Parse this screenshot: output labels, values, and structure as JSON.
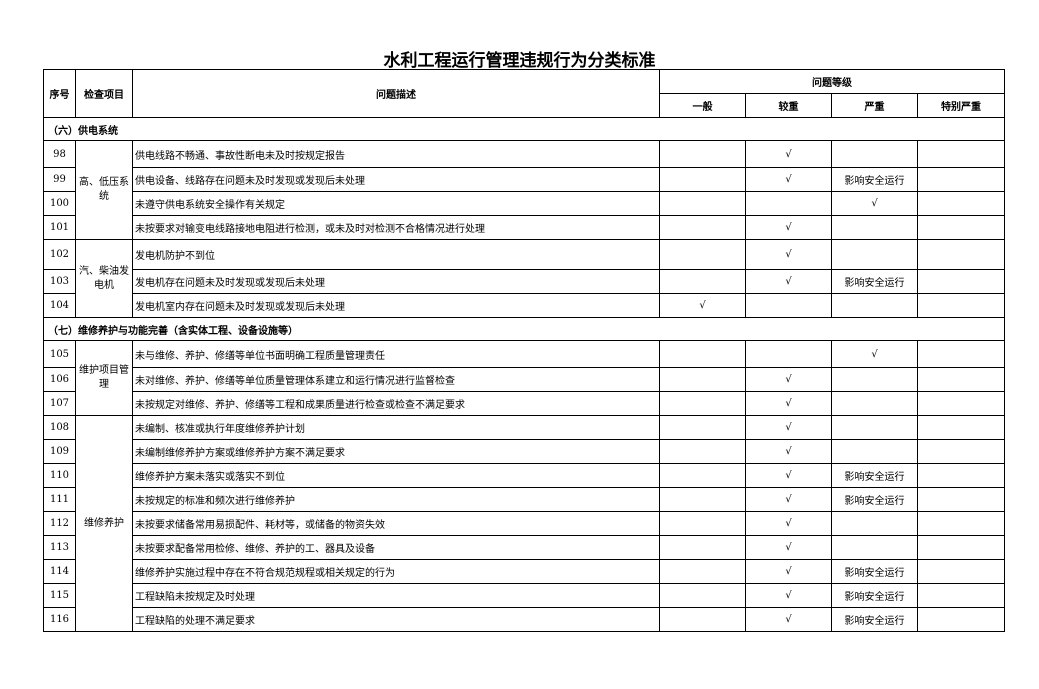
{
  "title": "水利工程运行管理违规行为分类标准",
  "headers": {
    "seq": "序号",
    "item": "检查项目",
    "desc": "问题描述",
    "level": "问题等级",
    "levels": [
      "一般",
      "较重",
      "严重",
      "特别严重"
    ]
  },
  "check": "√",
  "sections": [
    {
      "title": "（六）供电系统",
      "groups": [
        {
          "item": "高、低压系统",
          "rows": [
            {
              "seq": "98",
              "desc": "供电线路不畅通、事故性断电未及时按规定报告",
              "cells": [
                "",
                "√",
                "",
                ""
              ]
            },
            {
              "seq": "99",
              "desc": "供电设备、线路存在问题未及时发现或发现后未处理",
              "cells": [
                "",
                "√",
                "影响安全运行",
                ""
              ]
            },
            {
              "seq": "100",
              "desc": "未遵守供电系统安全操作有关规定",
              "cells": [
                "",
                "",
                "√",
                ""
              ]
            },
            {
              "seq": "101",
              "desc": "未按要求对输变电线路接地电阻进行检测，或未及时对检测不合格情况进行处理",
              "cells": [
                "",
                "√",
                "",
                ""
              ]
            }
          ]
        },
        {
          "item": "汽、柴油发电机",
          "rows": [
            {
              "seq": "102",
              "desc": "发电机防护不到位",
              "cells": [
                "",
                "√",
                "",
                ""
              ]
            },
            {
              "seq": "103",
              "desc": "发电机存在问题未及时发现或发现后未处理",
              "cells": [
                "",
                "√",
                "影响安全运行",
                ""
              ]
            },
            {
              "seq": "104",
              "desc": "发电机室内存在问题未及时发现或发现后未处理",
              "cells": [
                "√",
                "",
                "",
                ""
              ]
            }
          ]
        }
      ]
    },
    {
      "title": "（七）维修养护与功能完善（含实体工程、设备设施等）",
      "groups": [
        {
          "item": "维护项目管理",
          "rows": [
            {
              "seq": "105",
              "desc": "未与维修、养护、修缮等单位书面明确工程质量管理责任",
              "cells": [
                "",
                "",
                "√",
                ""
              ]
            },
            {
              "seq": "106",
              "desc": "未对维修、养护、修缮等单位质量管理体系建立和运行情况进行监督检查",
              "cells": [
                "",
                "√",
                "",
                ""
              ]
            },
            {
              "seq": "107",
              "desc": "未按规定对维修、养护、修缮等工程和成果质量进行检查或检查不满足要求",
              "cells": [
                "",
                "√",
                "",
                ""
              ]
            }
          ]
        },
        {
          "item": "维修养护",
          "rows": [
            {
              "seq": "108",
              "desc": "未编制、核准或执行年度维修养护计划",
              "cells": [
                "",
                "√",
                "",
                ""
              ]
            },
            {
              "seq": "109",
              "desc": "未编制维修养护方案或维修养护方案不满足要求",
              "cells": [
                "",
                "√",
                "",
                ""
              ]
            },
            {
              "seq": "110",
              "desc": "维修养护方案未落实或落实不到位",
              "cells": [
                "",
                "√",
                "影响安全运行",
                ""
              ]
            },
            {
              "seq": "111",
              "desc": "未按规定的标准和频次进行维修养护",
              "cells": [
                "",
                "√",
                "影响安全运行",
                ""
              ]
            },
            {
              "seq": "112",
              "desc": "未按要求储备常用易损配件、耗材等，或储备的物资失效",
              "cells": [
                "",
                "√",
                "",
                ""
              ]
            },
            {
              "seq": "113",
              "desc": "未按要求配备常用检修、维修、养护的工、器具及设备",
              "cells": [
                "",
                "√",
                "",
                ""
              ]
            },
            {
              "seq": "114",
              "desc": "维修养护实施过程中存在不符合规范规程或相关规定的行为",
              "cells": [
                "",
                "√",
                "影响安全运行",
                ""
              ]
            },
            {
              "seq": "115",
              "desc": "工程缺陷未按规定及时处理",
              "cells": [
                "",
                "√",
                "影响安全运行",
                ""
              ]
            },
            {
              "seq": "116",
              "desc": "工程缺陷的处理不满足要求",
              "cells": [
                "",
                "√",
                "影响安全运行",
                ""
              ]
            }
          ]
        }
      ]
    }
  ]
}
